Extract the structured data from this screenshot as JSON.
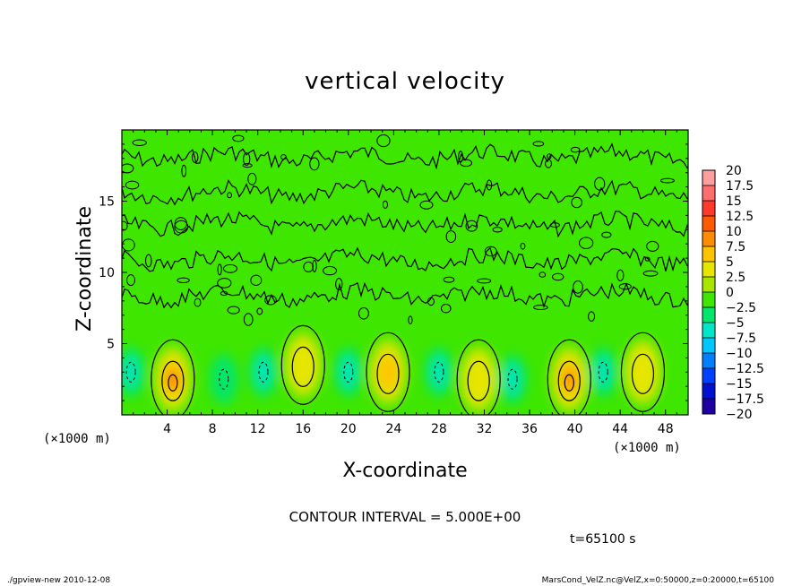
{
  "chart_data": {
    "type": "heatmap",
    "title": "vertical velocity",
    "xlabel": "X-coordinate",
    "ylabel": "Z-coordinate",
    "x_unit": "(×1000 m)",
    "y_unit": "(×1000 m)",
    "xlim": [
      0,
      50
    ],
    "ylim": [
      0,
      20
    ],
    "x_ticks": [
      4,
      8,
      12,
      16,
      20,
      24,
      28,
      32,
      36,
      40,
      44,
      48
    ],
    "y_ticks": [
      5,
      10,
      15
    ],
    "colorbar": {
      "levels": [
        20,
        17.5,
        15,
        12.5,
        10,
        7.5,
        5,
        2.5,
        0,
        -2.5,
        -5,
        -7.5,
        -10,
        -12.5,
        -15,
        -17.5,
        -20
      ],
      "colors": [
        "#ff9e9e",
        "#ff6e6e",
        "#ff3a2a",
        "#ff5a00",
        "#ff8c00",
        "#ffc400",
        "#e6e600",
        "#a8e600",
        "#3ee600",
        "#00e66e",
        "#00e6c8",
        "#00c8ff",
        "#0080ff",
        "#0040ff",
        "#0010d0",
        "#2000a0",
        "#6000b0"
      ]
    },
    "updrafts": [
      {
        "x": 4.5,
        "z": 2.5,
        "peak": 12
      },
      {
        "x": 16,
        "z": 3.5,
        "peak": 6
      },
      {
        "x": 23.5,
        "z": 3.0,
        "peak": 8
      },
      {
        "x": 31.5,
        "z": 2.5,
        "peak": 6
      },
      {
        "x": 39.5,
        "z": 2.5,
        "peak": 10
      },
      {
        "x": 46,
        "z": 3,
        "peak": 5
      }
    ],
    "downdrafts": [
      {
        "x": 0.8,
        "z": 3,
        "peak": -6
      },
      {
        "x": 9,
        "z": 2.5,
        "peak": -3
      },
      {
        "x": 12.5,
        "z": 3,
        "peak": -4
      },
      {
        "x": 20,
        "z": 3,
        "peak": -4
      },
      {
        "x": 28,
        "z": 3,
        "peak": -4
      },
      {
        "x": 34.5,
        "z": 2.5,
        "peak": -6
      },
      {
        "x": 42.5,
        "z": 3,
        "peak": -5
      }
    ]
  },
  "annotations": {
    "contour_interval": "CONTOUR INTERVAL = 5.000E+00",
    "time": "t=65100 s",
    "footer_left": "./gpview-new 2010-12-08",
    "footer_right": "MarsCond_VelZ.nc@VelZ,x=0:50000,z=0:20000,t=65100"
  }
}
